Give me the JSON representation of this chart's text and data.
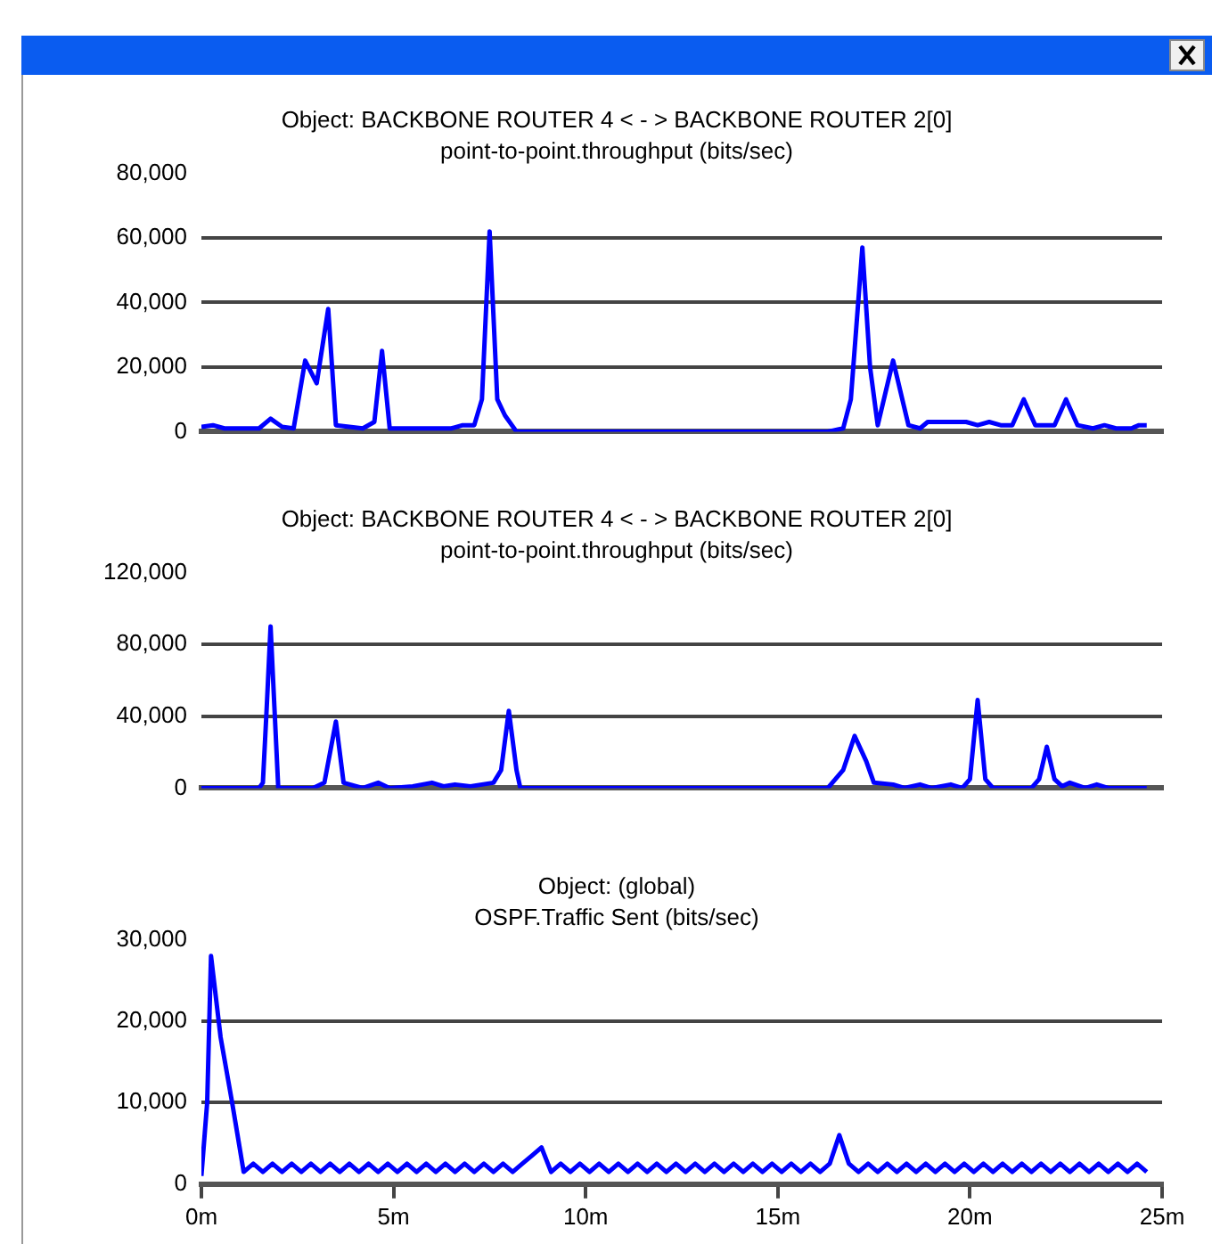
{
  "chart_data": [
    {
      "type": "line",
      "title": "Object: BACKBONE ROUTER 4 < - > BACKBONE ROUTER 2[0]",
      "subtitle": "point-to-point.throughput (bits/sec)",
      "grid": "y",
      "tick_labels": "y",
      "marker": "none",
      "line_style": "solid",
      "xlim": [
        0,
        25
      ],
      "ylim": [
        0,
        80000
      ],
      "yticks": [
        {
          "value": 0,
          "label": "0"
        },
        {
          "value": 20000,
          "label": "20,000"
        },
        {
          "value": 40000,
          "label": "40,000"
        },
        {
          "value": 60000,
          "label": "60,000"
        },
        {
          "value": 80000,
          "label": "80,000"
        }
      ],
      "series": [
        {
          "color": "#0000ff",
          "x": [
            0,
            0.3,
            0.6,
            1.5,
            1.8,
            2.1,
            2.4,
            2.7,
            3.0,
            3.3,
            3.5,
            4.2,
            4.5,
            4.7,
            4.9,
            6.5,
            6.8,
            7.1,
            7.3,
            7.5,
            7.7,
            7.9,
            8.2,
            16.3,
            16.7,
            16.9,
            17.2,
            17.4,
            17.6,
            18.0,
            18.4,
            18.7,
            18.9,
            19.9,
            20.2,
            20.5,
            20.8,
            21.1,
            21.4,
            21.7,
            22.2,
            22.5,
            22.8,
            23.2,
            23.5,
            23.8,
            24.2,
            24.4,
            24.6
          ],
          "values": [
            1500,
            2000,
            1000,
            1000,
            4000,
            1500,
            1000,
            22000,
            15000,
            38000,
            2000,
            1000,
            3000,
            25000,
            1000,
            1000,
            2000,
            2000,
            10000,
            62000,
            10000,
            5000,
            0,
            0,
            1000,
            10000,
            57000,
            20000,
            2000,
            22000,
            2000,
            1000,
            3000,
            3000,
            2000,
            3000,
            2000,
            2000,
            10000,
            2000,
            2000,
            10000,
            2000,
            1000,
            2000,
            1000,
            1000,
            2000,
            2000
          ]
        }
      ]
    },
    {
      "type": "line",
      "title": "Object: BACKBONE ROUTER 4 < - > BACKBONE ROUTER 2[0]",
      "subtitle": "point-to-point.throughput (bits/sec)",
      "grid": "y",
      "tick_labels": "y",
      "marker": "none",
      "line_style": "solid",
      "xlim": [
        0,
        25
      ],
      "ylim": [
        0,
        120000
      ],
      "yticks": [
        {
          "value": 0,
          "label": "0"
        },
        {
          "value": 40000,
          "label": "40,000"
        },
        {
          "value": 80000,
          "label": "80,000"
        },
        {
          "value": 120000,
          "label": "120,000"
        }
      ],
      "series": [
        {
          "color": "#0000ff",
          "x": [
            0,
            1.5,
            1.6,
            1.7,
            1.8,
            1.9,
            2.0,
            2.9,
            3.2,
            3.5,
            3.7,
            4.2,
            4.6,
            4.9,
            5.5,
            6.0,
            6.3,
            6.6,
            7.0,
            7.6,
            7.8,
            8.0,
            8.2,
            8.3,
            16.3,
            16.7,
            17.0,
            17.3,
            17.5,
            18.0,
            18.3,
            18.7,
            19.0,
            19.5,
            19.8,
            20.0,
            20.2,
            20.4,
            20.6,
            21.6,
            21.8,
            22.0,
            22.2,
            22.4,
            22.6,
            23.0,
            23.3,
            23.6,
            24.6
          ],
          "values": [
            0,
            0,
            3000,
            45000,
            90000,
            45000,
            0,
            0,
            3000,
            37000,
            3000,
            0,
            3000,
            0,
            1000,
            3000,
            1000,
            2000,
            1000,
            3000,
            10000,
            43000,
            10000,
            0,
            0,
            10000,
            29000,
            15000,
            3000,
            2000,
            0,
            2000,
            0,
            2000,
            0,
            5000,
            49000,
            5000,
            0,
            0,
            5000,
            23000,
            5000,
            1000,
            3000,
            0,
            2000,
            0,
            0
          ]
        }
      ]
    },
    {
      "type": "line",
      "title": "Object: (global)",
      "subtitle": "OSPF.Traffic Sent (bits/sec)",
      "grid": "y",
      "marker": "none",
      "line_style": "solid",
      "xlim": [
        0,
        25
      ],
      "xticks": [
        {
          "value": 0,
          "label": "0m"
        },
        {
          "value": 5,
          "label": "5m"
        },
        {
          "value": 10,
          "label": "10m"
        },
        {
          "value": 15,
          "label": "15m"
        },
        {
          "value": 20,
          "label": "20m"
        },
        {
          "value": 25,
          "label": "25m"
        }
      ],
      "ylim": [
        0,
        30000
      ],
      "yticks": [
        {
          "value": 0,
          "label": "0"
        },
        {
          "value": 10000,
          "label": "10,000"
        },
        {
          "value": 20000,
          "label": "20,000"
        },
        {
          "value": 30000,
          "label": "30,000"
        }
      ],
      "series": [
        {
          "color": "#0000ff",
          "x": [
            0,
            0.15,
            0.25,
            0.5,
            0.8,
            1.1,
            1.35,
            1.6,
            1.85,
            2.1,
            2.35,
            2.6,
            2.85,
            3.1,
            3.35,
            3.6,
            3.85,
            4.1,
            4.35,
            4.6,
            4.85,
            5.1,
            5.35,
            5.6,
            5.85,
            6.1,
            6.35,
            6.6,
            6.85,
            7.1,
            7.35,
            7.6,
            7.85,
            8.1,
            8.35,
            8.6,
            8.85,
            9.1,
            9.35,
            9.6,
            9.85,
            10.1,
            10.35,
            10.6,
            10.85,
            11.1,
            11.35,
            11.6,
            11.85,
            12.1,
            12.35,
            12.6,
            12.85,
            13.1,
            13.35,
            13.6,
            13.85,
            14.1,
            14.35,
            14.6,
            14.85,
            15.1,
            15.35,
            15.6,
            15.85,
            16.1,
            16.35,
            16.6,
            16.85,
            17.1,
            17.35,
            17.6,
            17.85,
            18.1,
            18.35,
            18.6,
            18.85,
            19.1,
            19.35,
            19.6,
            19.85,
            20.1,
            20.35,
            20.6,
            20.85,
            21.1,
            21.35,
            21.6,
            21.85,
            22.1,
            22.35,
            22.6,
            22.85,
            23.1,
            23.35,
            23.6,
            23.85,
            24.1,
            24.35,
            24.6
          ],
          "values": [
            1000,
            10000,
            28000,
            18000,
            10000,
            1500,
            2500,
            1500,
            2500,
            1500,
            2500,
            1500,
            2500,
            1500,
            2500,
            1500,
            2500,
            1500,
            2500,
            1500,
            2500,
            1500,
            2500,
            1500,
            2500,
            1500,
            2500,
            1500,
            2500,
            1500,
            2500,
            1500,
            2500,
            1500,
            2500,
            3500,
            4500,
            1500,
            2500,
            1500,
            2500,
            1500,
            2500,
            1500,
            2500,
            1500,
            2500,
            1500,
            2500,
            1500,
            2500,
            1500,
            2500,
            1500,
            2500,
            1500,
            2500,
            1500,
            2500,
            1500,
            2500,
            1500,
            2500,
            1500,
            2500,
            1500,
            2500,
            6000,
            2500,
            1500,
            2500,
            1500,
            2500,
            1500,
            2500,
            1500,
            2500,
            1500,
            2500,
            1500,
            2500,
            1500,
            2500,
            1500,
            2500,
            1500,
            2500,
            1500,
            2500,
            1500,
            2500,
            1500,
            2500,
            1500,
            2500,
            1500,
            2500,
            1500,
            2500,
            1500
          ]
        }
      ]
    }
  ]
}
